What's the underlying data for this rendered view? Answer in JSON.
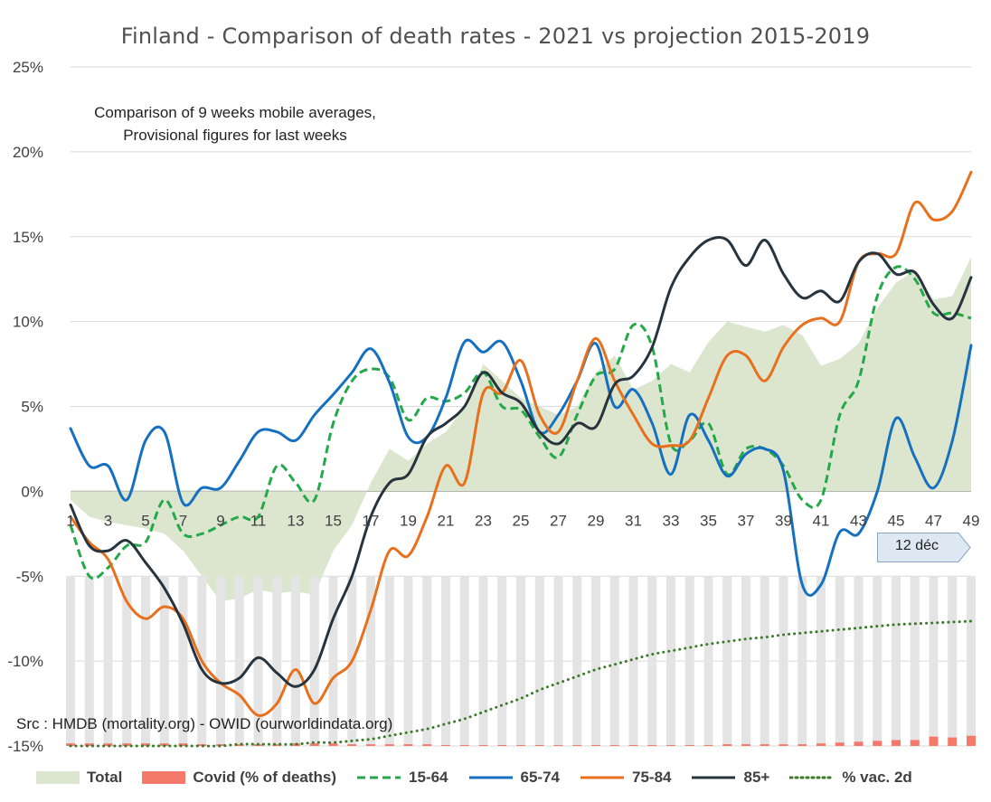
{
  "chart_data": {
    "type": "line",
    "title": "Finland - Comparison of death rates - 2021 vs projection 2015-2019",
    "annotation": [
      "Comparison of 9 weeks mobile averages,",
      "Provisional figures for last weeks"
    ],
    "source": "Src : HMDB (mortality.org) - OWID (ourworldindata.org)",
    "callout": "12 déc",
    "ylim": [
      -15,
      25
    ],
    "yticks": [
      "25%",
      "20%",
      "15%",
      "10%",
      "5%",
      "0%",
      "-5%",
      "-10%",
      "-15%"
    ],
    "xticks": [
      "1",
      "3",
      "5",
      "7",
      "9",
      "11",
      "13",
      "15",
      "17",
      "19",
      "21",
      "23",
      "25",
      "27",
      "29",
      "31",
      "33",
      "35",
      "37",
      "39",
      "41",
      "43",
      "45",
      "47",
      "49"
    ],
    "x": [
      1,
      2,
      3,
      4,
      5,
      6,
      7,
      8,
      9,
      10,
      11,
      12,
      13,
      14,
      15,
      16,
      17,
      18,
      19,
      20,
      21,
      22,
      23,
      24,
      25,
      26,
      27,
      28,
      29,
      30,
      31,
      32,
      33,
      34,
      35,
      36,
      37,
      38,
      39,
      40,
      41,
      42,
      43,
      44,
      45,
      46,
      47,
      48,
      49
    ],
    "grid": true,
    "legend_position": "bottom",
    "series": [
      {
        "name": "Total",
        "kind": "area",
        "color": "#dce6cf",
        "values": [
          -0.5,
          -1.5,
          -1.8,
          -2,
          -2.2,
          -2.5,
          -3.5,
          -5,
          -6.5,
          -6.3,
          -5.8,
          -6,
          -5.9,
          -6.1,
          -3.5,
          -2,
          0.5,
          2.5,
          1.8,
          2.8,
          3.5,
          5,
          7.5,
          6.5,
          5.5,
          5,
          4.5,
          5,
          7,
          8,
          6,
          6.5,
          7.5,
          7,
          8.8,
          10,
          9.7,
          9.4,
          9.8,
          9.2,
          7.4,
          7.8,
          8.7,
          10.8,
          12.3,
          13,
          11.3,
          11.5,
          13.8
        ]
      },
      {
        "name": "Covid (% of deaths)",
        "kind": "bar",
        "color": "#f4796b",
        "values": [
          0.15,
          0.15,
          0.15,
          0.15,
          0.15,
          0.15,
          0.15,
          0.1,
          0.1,
          0.1,
          0.1,
          0.1,
          0.15,
          0.15,
          0.15,
          0.1,
          0.1,
          0.1,
          0.1,
          0.1,
          0.05,
          0.05,
          0.05,
          0.05,
          0.05,
          0.05,
          0.05,
          0.05,
          0.05,
          0.05,
          0.05,
          0.05,
          0.05,
          0.05,
          0.05,
          0.1,
          0.1,
          0.1,
          0.1,
          0.1,
          0.15,
          0.2,
          0.25,
          0.3,
          0.35,
          0.35,
          0.55,
          0.5,
          0.6
        ]
      },
      {
        "name": "15-64",
        "kind": "line",
        "dash": "dashed",
        "color": "#23a84a",
        "values": [
          -2,
          -5,
          -4.5,
          -3.2,
          -3,
          -0.5,
          -2.5,
          -2.5,
          -2,
          -1.5,
          -1.5,
          1.5,
          0.5,
          -0.5,
          4,
          6.5,
          7.2,
          6.7,
          4.2,
          5.5,
          5.3,
          5.8,
          7,
          5,
          4.8,
          3.2,
          2,
          4.5,
          6.8,
          7.2,
          9.8,
          8.5,
          2.8,
          3,
          4,
          1,
          2.5,
          2.5,
          1.5,
          -0.5,
          -0.5,
          4.5,
          6.5,
          11.5,
          13.2,
          12.5,
          10.5,
          10.5,
          10.2
        ]
      },
      {
        "name": "65-74",
        "kind": "line",
        "color": "#1670c0",
        "values": [
          3.7,
          1.5,
          1.5,
          -0.5,
          3,
          3.5,
          -0.7,
          0.2,
          0.2,
          1.8,
          3.5,
          3.5,
          3,
          4.5,
          5.7,
          7,
          8.4,
          6.4,
          3.2,
          3.2,
          5.5,
          8.8,
          8.2,
          8.8,
          6.5,
          3.5,
          4.5,
          6.5,
          8.7,
          5,
          6,
          4,
          1,
          4.5,
          3,
          0.9,
          2.2,
          2.5,
          1.2,
          -5.5,
          -5.5,
          -2.4,
          -2.5,
          0,
          4.3,
          2,
          0.2,
          3,
          8.6
        ]
      },
      {
        "name": "75-84",
        "kind": "line",
        "color": "#e8701d",
        "values": [
          -1.5,
          -3,
          -4,
          -6.5,
          -7.5,
          -6.8,
          -7.5,
          -10,
          -11.3,
          -12,
          -13.2,
          -12.5,
          -10.5,
          -12.5,
          -11,
          -10,
          -7,
          -3.5,
          -3.8,
          -1.5,
          1.5,
          0.5,
          5.8,
          5.8,
          7.7,
          4.5,
          3.5,
          6.5,
          9,
          6.5,
          4.5,
          2.8,
          2.7,
          3,
          5.5,
          8,
          8,
          6.5,
          8.5,
          9.8,
          10.2,
          10,
          13.5,
          14,
          14,
          17,
          16,
          16.5,
          18.8
        ]
      },
      {
        "name": "85+",
        "kind": "line",
        "color": "#27343e",
        "values": [
          -0.8,
          -3.2,
          -3.5,
          -2.9,
          -4.2,
          -5.7,
          -7.8,
          -10.5,
          -11.3,
          -11,
          -9.8,
          -10.7,
          -11.5,
          -10.5,
          -7.5,
          -5,
          -1.5,
          0.5,
          1,
          3.2,
          4,
          5,
          7,
          5.8,
          5.2,
          3.5,
          2.8,
          4,
          3.8,
          6.3,
          6.8,
          8.5,
          12,
          13.8,
          14.8,
          14.8,
          13.3,
          14.8,
          12.8,
          11.4,
          11.8,
          11.2,
          13.5,
          14,
          12.8,
          12.9,
          11,
          10.2,
          12.6
        ]
      },
      {
        "name": "% vac. 2d",
        "kind": "line",
        "dash": "dotted",
        "color": "#3a7a2a",
        "values": [
          -15,
          -15,
          -15,
          -15,
          -15,
          -15,
          -15,
          -15,
          -15,
          -14.9,
          -14.9,
          -14.9,
          -14.9,
          -14.8,
          -14.8,
          -14.7,
          -14.6,
          -14.4,
          -14.2,
          -14,
          -13.7,
          -13.4,
          -13,
          -12.6,
          -12.2,
          -11.7,
          -11.3,
          -10.9,
          -10.5,
          -10.2,
          -9.9,
          -9.6,
          -9.4,
          -9.2,
          -9,
          -8.85,
          -8.7,
          -8.6,
          -8.45,
          -8.35,
          -8.25,
          -8.15,
          -8.05,
          -7.95,
          -7.85,
          -7.8,
          -7.75,
          -7.7,
          -7.65
        ]
      }
    ]
  },
  "legend": {
    "total": "Total",
    "covid": "Covid (% of deaths)",
    "g1564": "15-64",
    "g6574": "65-74",
    "g7584": "75-84",
    "g85": "85+",
    "vac": "% vac. 2d"
  }
}
